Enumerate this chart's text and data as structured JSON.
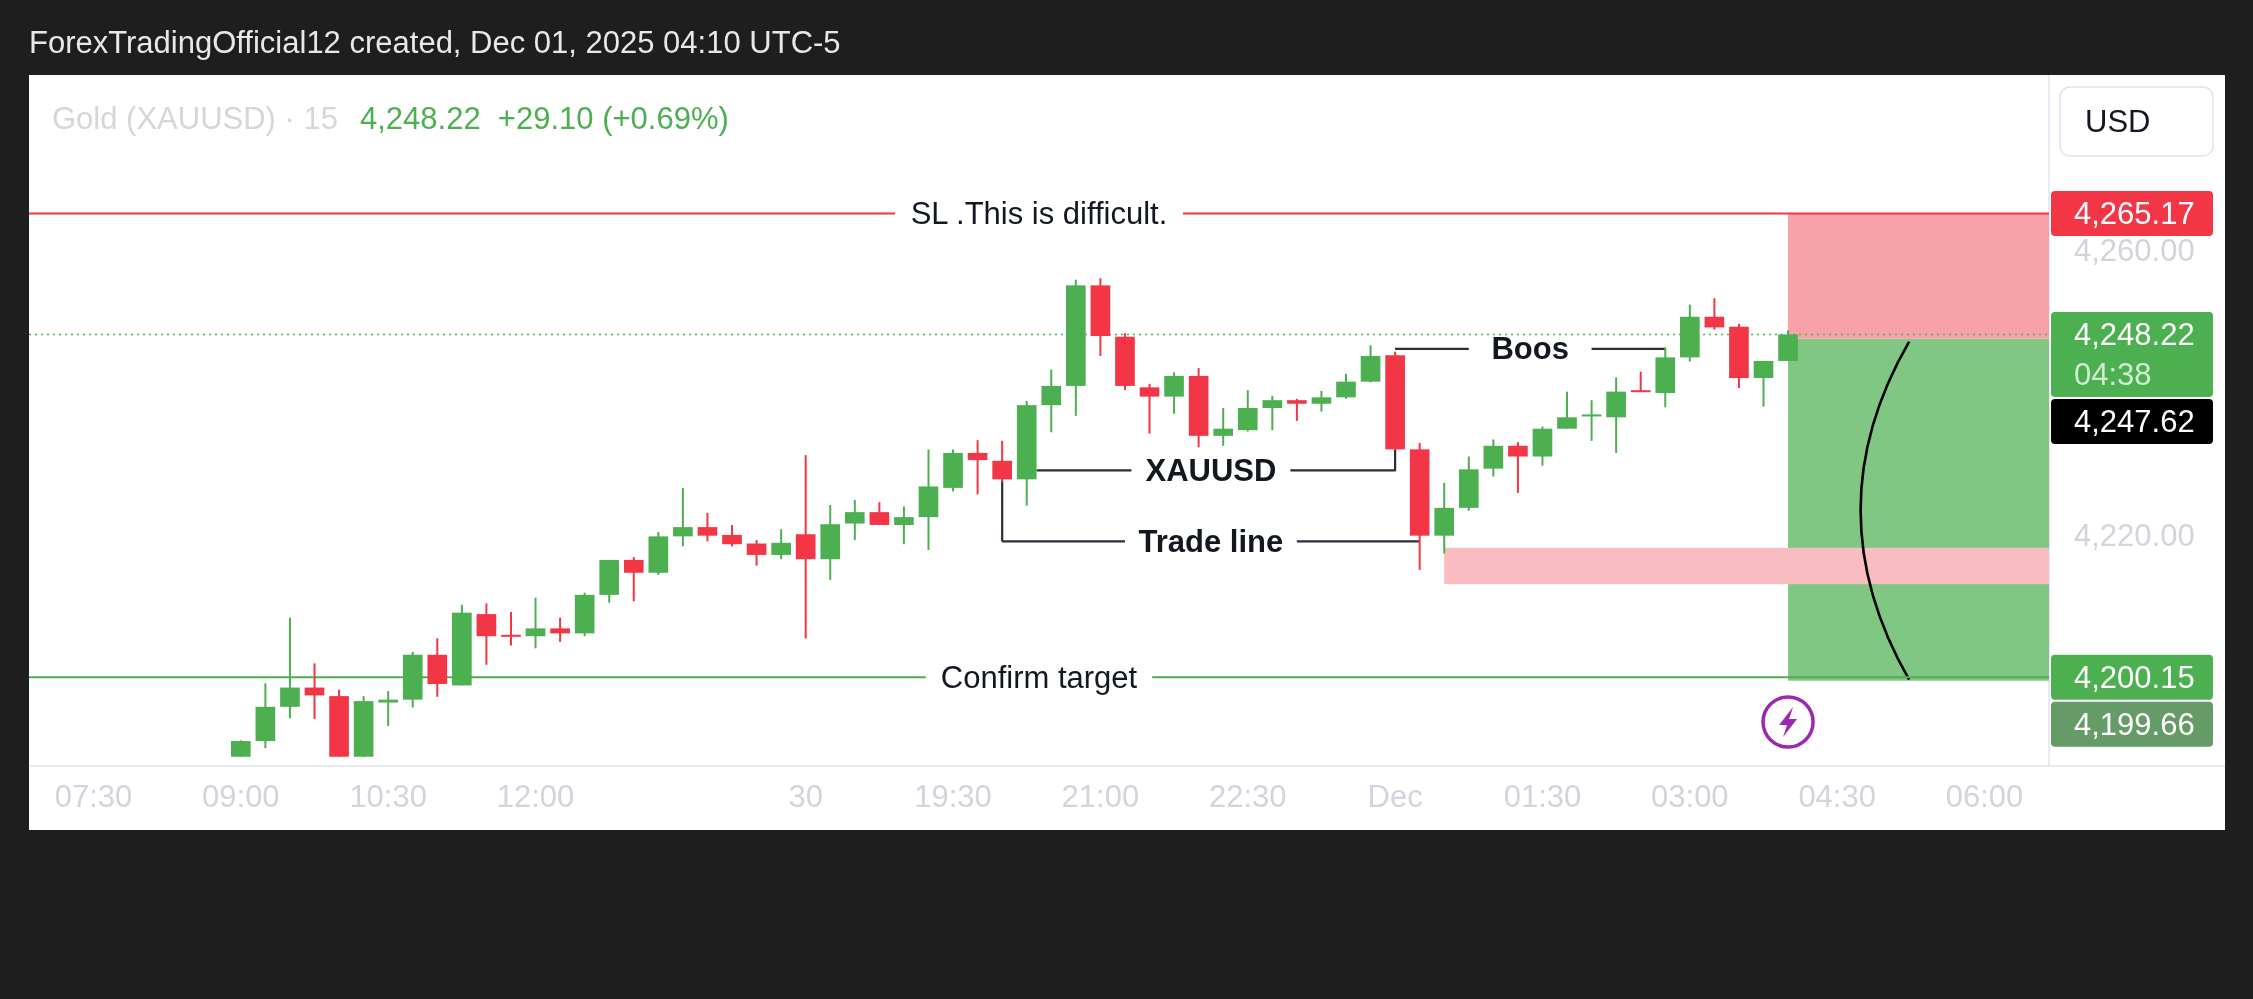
{
  "chart_data": {
    "type": "candlestick",
    "title": "Gold (XAUUSD) · 15",
    "subtitle": "4,248.22  +29.10 (+0.69%)",
    "ylabel": "USD",
    "categories": [
      null,
      null,
      "07:30",
      null,
      null,
      null,
      null,
      null,
      "09:00",
      null,
      null,
      null,
      null,
      null,
      "10:30",
      null,
      null,
      null,
      null,
      null,
      "12:00",
      null,
      null,
      null,
      null,
      null,
      null,
      null,
      null,
      null,
      null,
      "30",
      null,
      null,
      null,
      null,
      null,
      "19:30",
      null,
      null,
      null,
      null,
      null,
      "21:00",
      null,
      null,
      null,
      null,
      null,
      "22:30",
      null,
      null,
      null,
      null,
      null,
      "Dec",
      null,
      null,
      null,
      null,
      null,
      "01:30",
      null,
      null,
      null,
      null,
      null,
      "03:00",
      null,
      null,
      null,
      null,
      null,
      "04:30",
      null,
      null,
      null,
      null,
      null,
      "06:00",
      null,
      null
    ],
    "ohlc": [
      null,
      null,
      null,
      null,
      null,
      null,
      null,
      null,
      [
        4189.0,
        4191.3,
        4189.0,
        4191.2
      ],
      [
        4191.2,
        4199.3,
        4190.2,
        4196.0
      ],
      [
        4196.0,
        4208.5,
        4194.4,
        4198.7
      ],
      [
        4198.7,
        4202.1,
        4194.3,
        4197.6
      ],
      [
        4197.5,
        4198.4,
        4189.0,
        4189.0
      ],
      [
        4189.0,
        4197.5,
        4189.0,
        4196.8
      ],
      [
        4196.6,
        4198.2,
        4193.3,
        4197.0
      ],
      [
        4197.0,
        4203.7,
        4195.9,
        4203.3
      ],
      [
        4203.3,
        4205.6,
        4197.4,
        4199.2
      ],
      [
        4199.0,
        4210.3,
        4199.0,
        4209.2
      ],
      [
        4209.0,
        4210.5,
        4201.9,
        4205.9
      ],
      [
        4206.1,
        4209.3,
        4204.6,
        4205.9
      ],
      [
        4205.9,
        4211.3,
        4204.2,
        4207.0
      ],
      [
        4207.0,
        4208.5,
        4205.1,
        4206.3
      ],
      [
        4206.3,
        4212.0,
        4205.9,
        4211.7
      ],
      [
        4211.7,
        4216.6,
        4210.6,
        4216.6
      ],
      [
        4216.6,
        4217.0,
        4210.8,
        4214.8
      ],
      [
        4214.8,
        4220.5,
        4214.5,
        4219.9
      ],
      [
        4219.9,
        4226.7,
        4218.5,
        4221.2
      ],
      [
        4221.2,
        4223.2,
        4219.2,
        4220.0
      ],
      [
        4220.1,
        4221.5,
        4218.5,
        4218.8
      ],
      [
        4218.9,
        4219.4,
        4215.8,
        4217.3
      ],
      [
        4217.3,
        4220.9,
        4216.7,
        4219.0
      ],
      [
        4220.2,
        4231.3,
        4205.6,
        4216.7
      ],
      [
        4216.7,
        4224.3,
        4213.8,
        4221.6
      ],
      [
        4221.7,
        4225.0,
        4219.4,
        4223.3
      ],
      [
        4223.3,
        4224.7,
        4221.5,
        4221.5
      ],
      [
        4221.5,
        4224.1,
        4218.8,
        4222.6
      ],
      [
        4222.6,
        4232.1,
        4218.0,
        4226.9
      ],
      [
        4226.7,
        4232.1,
        4226.2,
        4231.6
      ],
      [
        4231.6,
        4233.4,
        4225.8,
        4230.6
      ],
      [
        4230.5,
        4233.3,
        4227.5,
        4227.9
      ],
      [
        4227.9,
        4238.9,
        4224.2,
        4238.3
      ],
      [
        4238.3,
        4243.3,
        4234.5,
        4241.0
      ],
      [
        4241.0,
        4255.9,
        4236.8,
        4255.1
      ],
      [
        4255.1,
        4256.1,
        4245.2,
        4248.0
      ],
      [
        4247.9,
        4248.4,
        4240.4,
        4241.0
      ],
      [
        4240.8,
        4241.3,
        4234.3,
        4239.5
      ],
      [
        4239.5,
        4242.9,
        4237.1,
        4242.4
      ],
      [
        4242.4,
        4243.5,
        4232.4,
        4234.0
      ],
      [
        4234.0,
        4237.9,
        4232.6,
        4235.0
      ],
      [
        4234.8,
        4240.4,
        4234.6,
        4237.9
      ],
      [
        4237.9,
        4239.6,
        4234.8,
        4239.0
      ],
      [
        4239.0,
        4239.2,
        4236.1,
        4238.5
      ],
      [
        4238.5,
        4240.3,
        4237.4,
        4239.4
      ],
      [
        4239.4,
        4242.7,
        4239.2,
        4241.6
      ],
      [
        4241.6,
        4246.7,
        4241.5,
        4245.2
      ],
      [
        4245.3,
        4245.8,
        4232.0,
        4232.1
      ],
      [
        4232.1,
        4233.0,
        4215.2,
        4220.0
      ],
      [
        4220.0,
        4227.4,
        4217.5,
        4223.9
      ],
      [
        4223.9,
        4231.1,
        4223.5,
        4229.3
      ],
      [
        4229.4,
        4233.5,
        4228.3,
        4232.6
      ],
      [
        4232.6,
        4233.1,
        4226.0,
        4231.1
      ],
      [
        4231.1,
        4235.3,
        4229.8,
        4235.0
      ],
      [
        4235.0,
        4240.2,
        4235.0,
        4236.6
      ],
      [
        4236.8,
        4239.0,
        4233.3,
        4237.0
      ],
      [
        4236.6,
        4242.2,
        4231.6,
        4240.2
      ],
      [
        4240.4,
        4243.0,
        4240.2,
        4240.2
      ],
      [
        4240.0,
        4246.4,
        4238.0,
        4245.0
      ],
      [
        4245.0,
        4252.4,
        4244.4,
        4250.7
      ],
      [
        4250.7,
        4253.3,
        4248.9,
        4249.2
      ],
      [
        4249.3,
        4249.7,
        4240.7,
        4242.1
      ],
      [
        4242.1,
        4244.5,
        4238.1,
        4244.5
      ],
      [
        4244.5,
        4248.8,
        4244.5,
        4248.22
      ],
      null,
      null,
      null,
      null,
      null,
      null,
      null,
      null,
      null,
      null
    ],
    "colors": [
      null,
      null,
      null,
      null,
      null,
      null,
      null,
      null,
      "#4caf50",
      "#4caf50",
      "#4caf50",
      "#f23645",
      "#f23645",
      "#4caf50",
      "#4caf50",
      "#4caf50",
      "#f23645",
      "#4caf50",
      "#f23645",
      "#f23645",
      "#4caf50",
      "#f23645",
      "#4caf50",
      "#4caf50",
      "#f23645",
      "#4caf50",
      "#4caf50",
      "#f23645",
      "#f23645",
      "#f23645",
      "#4caf50",
      "#f23645",
      "#4caf50",
      "#4caf50",
      "#f23645",
      "#4caf50",
      "#4caf50",
      "#4caf50",
      "#f23645",
      "#f23645",
      "#4caf50",
      "#4caf50",
      "#4caf50",
      "#f23645",
      "#f23645",
      "#f23645",
      "#4caf50",
      "#f23645",
      "#4caf50",
      "#4caf50",
      "#4caf50",
      "#f23645",
      "#4caf50",
      "#4caf50",
      "#4caf50",
      "#f23645",
      "#f23645",
      "#4caf50",
      "#4caf50",
      "#4caf50",
      "#f23645",
      "#4caf50",
      "#4caf50",
      "#4caf50",
      "#4caf50",
      "#f23645",
      "#4caf50",
      "#4caf50",
      "#f23645",
      "#f23645",
      "#4caf50",
      "#4caf50",
      null,
      null,
      null,
      null,
      null,
      null,
      null,
      null,
      null,
      null
    ],
    "series": [
      {
        "name": "Trade line",
        "type": "line",
        "color": "#2a2e39",
        "values": [
          null,
          null,
          null,
          null,
          null,
          null,
          null,
          null,
          null,
          null,
          null,
          null,
          null,
          null,
          null,
          null,
          null,
          null,
          null,
          null,
          null,
          null,
          null,
          null,
          null,
          null,
          null,
          null,
          null,
          null,
          null,
          null,
          null,
          null,
          null,
          null,
          null,
          null,
          null,
          4219.2,
          4219.2,
          4219.2,
          4219.2,
          4219.2,
          4219.2,
          null,
          null,
          null,
          null,
          null,
          null,
          4219.2,
          4219.2,
          4219.2,
          4219.2,
          4219.2,
          4219.2,
          null,
          null,
          null,
          null,
          null,
          null,
          null,
          null,
          null,
          null,
          null,
          null,
          null,
          null,
          null,
          null,
          null,
          null,
          null,
          null,
          null,
          null,
          null,
          null,
          null
        ]
      },
      {
        "name": "Boos",
        "type": "line",
        "color": "#2a2e39",
        "values": [
          null,
          null,
          null,
          null,
          null,
          null,
          null,
          null,
          null,
          null,
          null,
          null,
          null,
          null,
          null,
          null,
          null,
          null,
          null,
          null,
          null,
          null,
          null,
          null,
          null,
          null,
          null,
          null,
          null,
          null,
          null,
          null,
          null,
          null,
          null,
          null,
          null,
          null,
          null,
          null,
          null,
          null,
          null,
          null,
          null,
          null,
          null,
          null,
          null,
          null,
          null,
          null,
          null,
          null,
          null,
          4246.2,
          4246.2,
          4246.2,
          4246.2,
          null,
          null,
          null,
          null,
          4246.2,
          4246.2,
          4246.2,
          4246.2,
          null,
          null,
          null,
          null,
          null,
          null,
          null,
          null,
          null,
          null,
          null,
          null,
          null,
          null,
          null
        ]
      }
    ],
    "ylim": [
      4187.7,
      4284.6
    ],
    "yticks": [
      {
        "value": 4220,
        "label": "4,220.00"
      },
      {
        "value": 4260,
        "label": "4,260.00"
      }
    ],
    "ref_lines": [
      {
        "axis": "y",
        "value": 4265.17,
        "label": "SL .This is difficult.",
        "color": "#f23645"
      },
      {
        "axis": "y",
        "value": 4248.22,
        "color": "#4caf50",
        "line_style": "dotted"
      },
      {
        "axis": "y",
        "value": 4200.15,
        "label": "Confirm target",
        "color": "#4caf50"
      }
    ],
    "bands": [
      {
        "axis": "y",
        "from": 4199.66,
        "to": 4247.62,
        "color": "#81c784"
      },
      {
        "axis": "y",
        "from": 4247.62,
        "to": 4265.17,
        "color": "#f7a1a8"
      },
      {
        "axis": "y",
        "from": 4213.2,
        "to": 4218.3,
        "color": "#f9bcc0"
      }
    ],
    "annotations": [
      "ForexTradingOfficial12 created, Dec 01, 2025 04:10 UTC-5",
      {
        "text": "XAUUSD",
        "x": "Dec",
        "y": 4232.1
      },
      "4,265.17",
      "4,248.22",
      "04:38",
      "4,247.62",
      "4,200.15",
      "4,199.66"
    ]
  }
}
